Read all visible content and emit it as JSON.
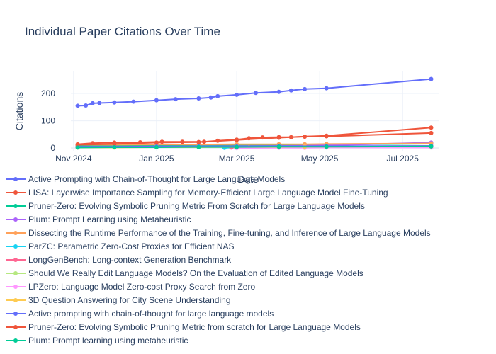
{
  "chart_data": {
    "type": "line",
    "title": "Individual Paper Citations Over Time",
    "xlabel": "Date",
    "ylabel": "Citations",
    "x_type": "date",
    "xlim": [
      "2024-10-30",
      "2025-07-28"
    ],
    "ylim": [
      -10,
      283
    ],
    "x_ticks": [
      {
        "value": "2024-11-01",
        "label": "Nov 2024"
      },
      {
        "value": "2025-01-01",
        "label": "Jan 2025"
      },
      {
        "value": "2025-03-01",
        "label": "Mar 2025"
      },
      {
        "value": "2025-05-01",
        "label": "May 2025"
      },
      {
        "value": "2025-07-01",
        "label": "Jul 2025"
      }
    ],
    "y_ticks": [
      0,
      100,
      200
    ],
    "grid": true,
    "legend_position": "bottom",
    "series": [
      {
        "name": "Active Prompting with Chain-of-Thought for Large Language Models",
        "color": "#636efa",
        "x": [
          "2024-11-04",
          "2024-11-10",
          "2024-11-15",
          "2024-11-20",
          "2024-12-01",
          "2024-12-15",
          "2025-01-01",
          "2025-01-15",
          "2025-02-01",
          "2025-02-10",
          "2025-02-15",
          "2025-03-01",
          "2025-03-15",
          "2025-04-01",
          "2025-04-10",
          "2025-04-20",
          "2025-05-06",
          "2025-07-22"
        ],
        "y": [
          155,
          156,
          164,
          165,
          167,
          170,
          175,
          179,
          182,
          185,
          190,
          195,
          202,
          206,
          211,
          216,
          219,
          253
        ]
      },
      {
        "name": "LISA: Layerwise Importance Sampling for Memory-Efficient Large Language Model Fine-Tuning",
        "color": "#ef553b",
        "x": [
          "2024-11-04",
          "2024-11-15",
          "2024-12-01",
          "2024-12-20",
          "2025-01-05",
          "2025-01-20",
          "2025-02-05",
          "2025-02-15",
          "2025-03-01",
          "2025-03-10",
          "2025-03-20",
          "2025-04-01",
          "2025-04-10",
          "2025-04-20",
          "2025-05-06",
          "2025-07-22"
        ],
        "y": [
          14,
          18,
          20,
          21,
          23,
          23,
          23,
          27,
          31,
          36,
          39,
          40,
          40,
          42,
          43,
          55
        ]
      },
      {
        "name": "Pruner-Zero: Evolving Symbolic Pruning Metric From Scratch for Large Language Models",
        "color": "#00cc96",
        "x": [
          "2024-11-04",
          "2024-12-01",
          "2025-01-01",
          "2025-02-01",
          "2025-03-01",
          "2025-04-01",
          "2025-04-20",
          "2025-05-06",
          "2025-07-22"
        ],
        "y": [
          8,
          9,
          10,
          11,
          12,
          12,
          13,
          13,
          16
        ]
      },
      {
        "name": "Plum: Prompt Learning using Metaheuristic",
        "color": "#ab63fa",
        "x": [
          "2024-11-04",
          "2024-12-01",
          "2025-01-01",
          "2025-02-01",
          "2025-03-01",
          "2025-04-01",
          "2025-04-20",
          "2025-05-06",
          "2025-07-22"
        ],
        "y": [
          3,
          4,
          5,
          6,
          7,
          8,
          9,
          10,
          20
        ]
      },
      {
        "name": "Dissecting the Runtime Performance of the Training, Fine-tuning, and Inference of Large Language Models",
        "color": "#ffa15a",
        "x": [
          "2024-11-04",
          "2024-12-01",
          "2025-01-01",
          "2025-02-01",
          "2025-03-01",
          "2025-04-01",
          "2025-04-20",
          "2025-05-06",
          "2025-07-22"
        ],
        "y": [
          12,
          12,
          13,
          13,
          14,
          14,
          14,
          15,
          17
        ]
      },
      {
        "name": "ParZC: Parametric Zero-Cost Proxies for Efficient NAS",
        "color": "#19d3f3",
        "x": [
          "2025-02-20",
          "2025-03-01",
          "2025-04-01",
          "2025-04-20",
          "2025-05-06",
          "2025-07-22"
        ],
        "y": [
          1,
          2,
          3,
          3,
          4,
          5
        ]
      },
      {
        "name": "LongGenBench: Long-context Generation Benchmark",
        "color": "#ff6692",
        "x": [
          "2025-02-25",
          "2025-03-10",
          "2025-04-01",
          "2025-04-20",
          "2025-05-06",
          "2025-07-22"
        ],
        "y": [
          2,
          3,
          4,
          5,
          6,
          8
        ]
      },
      {
        "name": "Should We Really Edit Language Models? On the Evaluation of Edited Language Models",
        "color": "#b6e880",
        "x": [
          "2025-03-01",
          "2025-04-01",
          "2025-04-20",
          "2025-05-06",
          "2025-07-22"
        ],
        "y": [
          1,
          2,
          2,
          3,
          4
        ]
      },
      {
        "name": "LPZero: Language Model Zero-cost Proxy Search from Zero",
        "color": "#ff97ff",
        "x": [
          "2025-03-01",
          "2025-04-01",
          "2025-04-20",
          "2025-05-06",
          "2025-07-22"
        ],
        "y": [
          0,
          1,
          1,
          2,
          2
        ]
      },
      {
        "name": "3D Question Answering for City Scene Understanding",
        "color": "#fecb52",
        "x": [
          "2024-11-04",
          "2024-12-01",
          "2025-01-01",
          "2025-02-01",
          "2025-03-01",
          "2025-04-01",
          "2025-04-20",
          "2025-05-06",
          "2025-07-22"
        ],
        "y": [
          2,
          2,
          3,
          3,
          4,
          4,
          5,
          5,
          6
        ]
      },
      {
        "name": "Active prompting with chain-of-thought for large language models",
        "color": "#636efa",
        "x": [
          "2024-11-04",
          "2024-12-01",
          "2025-01-01",
          "2025-02-01",
          "2025-03-01",
          "2025-04-01",
          "2025-05-06",
          "2025-07-22"
        ],
        "y": [
          5,
          5,
          6,
          6,
          6,
          7,
          7,
          8
        ]
      },
      {
        "name": "Pruner-Zero: Evolving Symbolic Pruning Metric from scratch for Large Language Models",
        "color": "#ef553b",
        "x": [
          "2024-11-04",
          "2024-12-01",
          "2025-01-01",
          "2025-02-01",
          "2025-03-01",
          "2025-04-01",
          "2025-04-20",
          "2025-05-06",
          "2025-07-22"
        ],
        "y": [
          12,
          15,
          20,
          22,
          30,
          38,
          42,
          45,
          75
        ]
      },
      {
        "name": "Plum: Prompt learning using metaheuristic",
        "color": "#00cc96",
        "x": [
          "2024-11-04",
          "2024-12-01",
          "2025-01-01",
          "2025-02-01",
          "2025-03-01",
          "2025-04-01",
          "2025-05-06",
          "2025-07-22"
        ],
        "y": [
          2,
          3,
          3,
          4,
          4,
          5,
          5,
          6
        ]
      }
    ]
  }
}
